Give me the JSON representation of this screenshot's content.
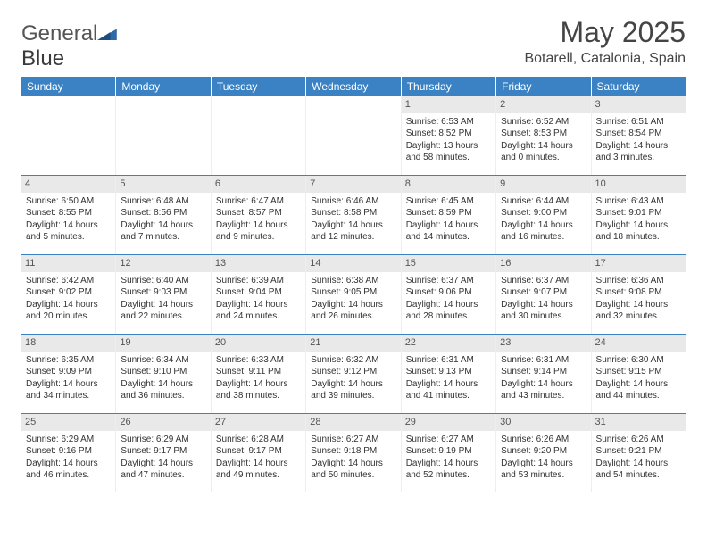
{
  "brand": {
    "text1": "General",
    "text2": "Blue",
    "logo_color": "#2f6aa8"
  },
  "title": "May 2025",
  "location": "Botarell, Catalonia, Spain",
  "colors": {
    "header_bg": "#3b82c4",
    "header_text": "#ffffff",
    "daynum_bg": "#e9e9e9",
    "rule": "#3b82c4",
    "body_text": "#333333"
  },
  "day_names": [
    "Sunday",
    "Monday",
    "Tuesday",
    "Wednesday",
    "Thursday",
    "Friday",
    "Saturday"
  ],
  "first_weekday_index": 4,
  "days": [
    {
      "n": 1,
      "sunrise": "6:53 AM",
      "sunset": "8:52 PM",
      "daylight": "13 hours and 58 minutes."
    },
    {
      "n": 2,
      "sunrise": "6:52 AM",
      "sunset": "8:53 PM",
      "daylight": "14 hours and 0 minutes."
    },
    {
      "n": 3,
      "sunrise": "6:51 AM",
      "sunset": "8:54 PM",
      "daylight": "14 hours and 3 minutes."
    },
    {
      "n": 4,
      "sunrise": "6:50 AM",
      "sunset": "8:55 PM",
      "daylight": "14 hours and 5 minutes."
    },
    {
      "n": 5,
      "sunrise": "6:48 AM",
      "sunset": "8:56 PM",
      "daylight": "14 hours and 7 minutes."
    },
    {
      "n": 6,
      "sunrise": "6:47 AM",
      "sunset": "8:57 PM",
      "daylight": "14 hours and 9 minutes."
    },
    {
      "n": 7,
      "sunrise": "6:46 AM",
      "sunset": "8:58 PM",
      "daylight": "14 hours and 12 minutes."
    },
    {
      "n": 8,
      "sunrise": "6:45 AM",
      "sunset": "8:59 PM",
      "daylight": "14 hours and 14 minutes."
    },
    {
      "n": 9,
      "sunrise": "6:44 AM",
      "sunset": "9:00 PM",
      "daylight": "14 hours and 16 minutes."
    },
    {
      "n": 10,
      "sunrise": "6:43 AM",
      "sunset": "9:01 PM",
      "daylight": "14 hours and 18 minutes."
    },
    {
      "n": 11,
      "sunrise": "6:42 AM",
      "sunset": "9:02 PM",
      "daylight": "14 hours and 20 minutes."
    },
    {
      "n": 12,
      "sunrise": "6:40 AM",
      "sunset": "9:03 PM",
      "daylight": "14 hours and 22 minutes."
    },
    {
      "n": 13,
      "sunrise": "6:39 AM",
      "sunset": "9:04 PM",
      "daylight": "14 hours and 24 minutes."
    },
    {
      "n": 14,
      "sunrise": "6:38 AM",
      "sunset": "9:05 PM",
      "daylight": "14 hours and 26 minutes."
    },
    {
      "n": 15,
      "sunrise": "6:37 AM",
      "sunset": "9:06 PM",
      "daylight": "14 hours and 28 minutes."
    },
    {
      "n": 16,
      "sunrise": "6:37 AM",
      "sunset": "9:07 PM",
      "daylight": "14 hours and 30 minutes."
    },
    {
      "n": 17,
      "sunrise": "6:36 AM",
      "sunset": "9:08 PM",
      "daylight": "14 hours and 32 minutes."
    },
    {
      "n": 18,
      "sunrise": "6:35 AM",
      "sunset": "9:09 PM",
      "daylight": "14 hours and 34 minutes."
    },
    {
      "n": 19,
      "sunrise": "6:34 AM",
      "sunset": "9:10 PM",
      "daylight": "14 hours and 36 minutes."
    },
    {
      "n": 20,
      "sunrise": "6:33 AM",
      "sunset": "9:11 PM",
      "daylight": "14 hours and 38 minutes."
    },
    {
      "n": 21,
      "sunrise": "6:32 AM",
      "sunset": "9:12 PM",
      "daylight": "14 hours and 39 minutes."
    },
    {
      "n": 22,
      "sunrise": "6:31 AM",
      "sunset": "9:13 PM",
      "daylight": "14 hours and 41 minutes."
    },
    {
      "n": 23,
      "sunrise": "6:31 AM",
      "sunset": "9:14 PM",
      "daylight": "14 hours and 43 minutes."
    },
    {
      "n": 24,
      "sunrise": "6:30 AM",
      "sunset": "9:15 PM",
      "daylight": "14 hours and 44 minutes."
    },
    {
      "n": 25,
      "sunrise": "6:29 AM",
      "sunset": "9:16 PM",
      "daylight": "14 hours and 46 minutes."
    },
    {
      "n": 26,
      "sunrise": "6:29 AM",
      "sunset": "9:17 PM",
      "daylight": "14 hours and 47 minutes."
    },
    {
      "n": 27,
      "sunrise": "6:28 AM",
      "sunset": "9:17 PM",
      "daylight": "14 hours and 49 minutes."
    },
    {
      "n": 28,
      "sunrise": "6:27 AM",
      "sunset": "9:18 PM",
      "daylight": "14 hours and 50 minutes."
    },
    {
      "n": 29,
      "sunrise": "6:27 AM",
      "sunset": "9:19 PM",
      "daylight": "14 hours and 52 minutes."
    },
    {
      "n": 30,
      "sunrise": "6:26 AM",
      "sunset": "9:20 PM",
      "daylight": "14 hours and 53 minutes."
    },
    {
      "n": 31,
      "sunrise": "6:26 AM",
      "sunset": "9:21 PM",
      "daylight": "14 hours and 54 minutes."
    }
  ],
  "labels": {
    "sunrise": "Sunrise: ",
    "sunset": "Sunset: ",
    "daylight": "Daylight: "
  }
}
